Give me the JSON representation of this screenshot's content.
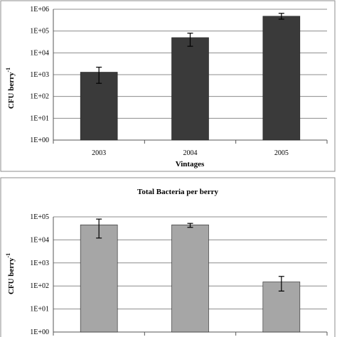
{
  "chart_data": [
    {
      "type": "bar",
      "title": "",
      "xlabel": "Vintages",
      "ylabel": "CFU berry",
      "ylabel_sup": "-1",
      "yscale": "log",
      "ylim": [
        1,
        1000000
      ],
      "yticks": [
        "1E+00",
        "1E+01",
        "1E+02",
        "1E+03",
        "1E+04",
        "1E+05",
        "1E+06"
      ],
      "grid": true,
      "categories": [
        "2003",
        "2004",
        "2005"
      ],
      "values": [
        1300,
        50000,
        480000
      ],
      "error_low": [
        400,
        20000,
        350000
      ],
      "error_high": [
        2200,
        80000,
        650000
      ],
      "colors": {
        "bar": "#3a3a3a",
        "grid": "#8c8c8c",
        "frame": "#8c8c8c"
      }
    },
    {
      "type": "bar",
      "title": "Total Bacteria per berry",
      "xlabel": "",
      "ylabel": "CFU berry",
      "ylabel_sup": "-1",
      "yscale": "log",
      "ylim": [
        1,
        100000
      ],
      "yticks": [
        "1E+00",
        "1E+01",
        "1E+02",
        "1E+03",
        "1E+04",
        "1E+05"
      ],
      "grid": true,
      "categories": [
        "",
        "",
        ""
      ],
      "values": [
        45000,
        45000,
        150
      ],
      "error_low": [
        12000,
        35000,
        60
      ],
      "error_high": [
        80000,
        52000,
        260
      ],
      "colors": {
        "bar": "#a6a6a6",
        "grid": "#8c8c8c",
        "frame": "#8c8c8c"
      }
    }
  ]
}
